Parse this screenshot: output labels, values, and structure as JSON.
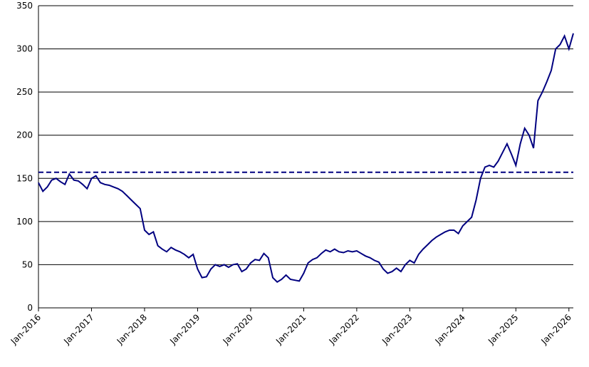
{
  "chart_data": {
    "type": "line",
    "x": [
      "2016-01",
      "2016-02",
      "2016-03",
      "2016-04",
      "2016-05",
      "2016-06",
      "2016-07",
      "2016-08",
      "2016-09",
      "2016-10",
      "2016-11",
      "2016-12",
      "2017-01",
      "2017-02",
      "2017-03",
      "2017-04",
      "2017-05",
      "2017-06",
      "2017-07",
      "2017-08",
      "2017-09",
      "2017-10",
      "2017-11",
      "2017-12",
      "2018-01",
      "2018-02",
      "2018-03",
      "2018-04",
      "2018-05",
      "2018-06",
      "2018-07",
      "2018-08",
      "2018-09",
      "2018-10",
      "2018-11",
      "2018-12",
      "2019-01",
      "2019-02",
      "2019-03",
      "2019-04",
      "2019-05",
      "2019-06",
      "2019-07",
      "2019-08",
      "2019-09",
      "2019-10",
      "2019-11",
      "2019-12",
      "2020-01",
      "2020-02",
      "2020-03",
      "2020-04",
      "2020-05",
      "2020-06",
      "2020-07",
      "2020-08",
      "2020-09",
      "2020-10",
      "2020-11",
      "2020-12",
      "2021-01",
      "2021-02",
      "2021-03",
      "2021-04",
      "2021-05",
      "2021-06",
      "2021-07",
      "2021-08",
      "2021-09",
      "2021-10",
      "2021-11",
      "2021-12",
      "2022-01",
      "2022-02",
      "2022-03",
      "2022-04",
      "2022-05",
      "2022-06",
      "2022-07",
      "2022-08",
      "2022-09",
      "2022-10",
      "2022-11",
      "2022-12",
      "2023-01",
      "2023-02",
      "2023-03",
      "2023-04",
      "2023-05",
      "2023-06",
      "2023-07",
      "2023-08",
      "2023-09",
      "2023-10",
      "2023-11",
      "2023-12",
      "2024-01",
      "2024-02",
      "2024-03",
      "2024-04",
      "2024-05",
      "2024-06",
      "2024-07",
      "2024-08",
      "2024-09",
      "2024-10",
      "2024-11",
      "2024-12",
      "2025-01",
      "2025-02",
      "2025-03",
      "2025-04",
      "2025-05",
      "2025-06",
      "2025-07",
      "2025-08",
      "2025-09",
      "2025-10",
      "2025-11",
      "2025-12",
      "2026-01",
      "2026-02"
    ],
    "series": [
      {
        "color": "#000080",
        "values": [
          145,
          135,
          140,
          148,
          150,
          146,
          143,
          155,
          148,
          147,
          143,
          138,
          150,
          153,
          145,
          143,
          142,
          140,
          138,
          135,
          130,
          125,
          120,
          115,
          90,
          85,
          88,
          72,
          68,
          65,
          70,
          67,
          65,
          62,
          58,
          62,
          45,
          35,
          36,
          45,
          50,
          48,
          50,
          47,
          50,
          51,
          42,
          45,
          52,
          56,
          55,
          63,
          58,
          35,
          30,
          33,
          38,
          33,
          32,
          31,
          40,
          52,
          56,
          58,
          63,
          67,
          65,
          68,
          65,
          64,
          66,
          65,
          66,
          63,
          60,
          58,
          55,
          53,
          45,
          40,
          42,
          46,
          42,
          50,
          55,
          52,
          62,
          68,
          73,
          78,
          82,
          85,
          88,
          90,
          90,
          86,
          95,
          100,
          105,
          125,
          150,
          163,
          165,
          163,
          170,
          180,
          190,
          178,
          165,
          190,
          208,
          200,
          185,
          240,
          250,
          262,
          275,
          300,
          305,
          315,
          300,
          318
        ]
      }
    ],
    "reference_line": {
      "value": 157,
      "color": "#000080",
      "style": "dashed"
    },
    "xlim": [
      "2016-01",
      "2026-02"
    ],
    "xticks": [
      {
        "value": "2016-01",
        "label": "Jan-2016"
      },
      {
        "value": "2017-01",
        "label": "Jan-2017"
      },
      {
        "value": "2018-01",
        "label": "Jan-2018"
      },
      {
        "value": "2019-01",
        "label": "Jan-2019"
      },
      {
        "value": "2020-01",
        "label": "Jan-2020"
      },
      {
        "value": "2021-01",
        "label": "Jan-2021"
      },
      {
        "value": "2022-01",
        "label": "Jan-2022"
      },
      {
        "value": "2023-01",
        "label": "Jan-2023"
      },
      {
        "value": "2024-01",
        "label": "Jan-2024"
      },
      {
        "value": "2025-01",
        "label": "Jan-2025"
      },
      {
        "value": "2026-01",
        "label": "Jan-2026"
      }
    ],
    "ylim": [
      0,
      350
    ],
    "yticks": [
      0,
      50,
      100,
      150,
      200,
      250,
      300,
      350
    ],
    "grid": true
  }
}
